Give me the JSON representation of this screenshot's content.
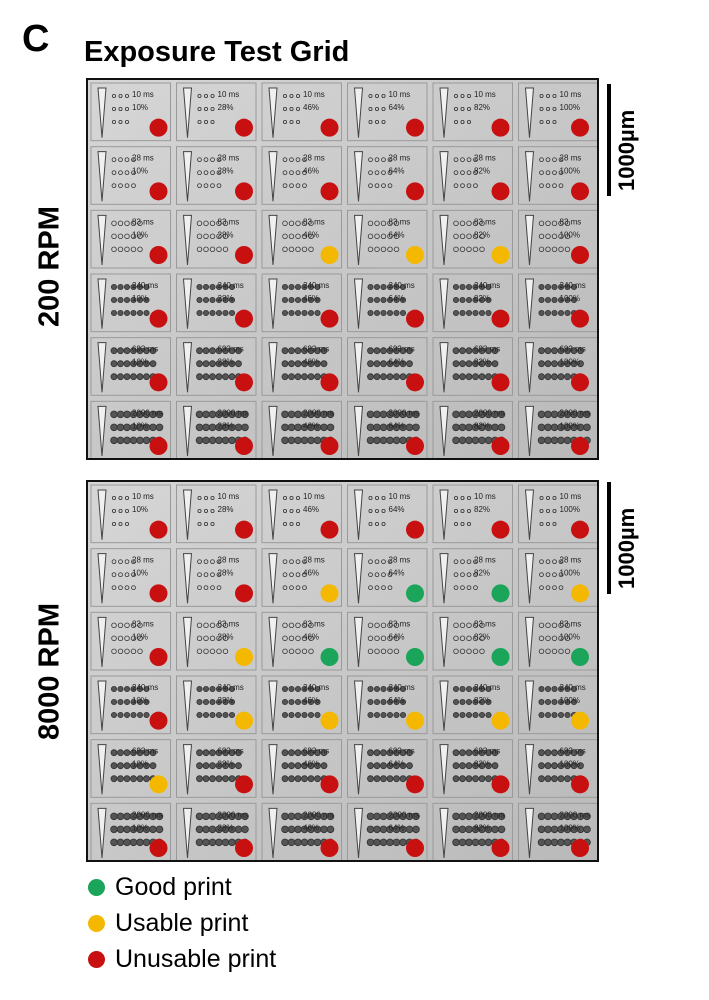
{
  "figure": {
    "panel_letter": "C",
    "title": "Exposure Test Grid",
    "scale_label": "1000µm"
  },
  "colors": {
    "good": "#1aa55a",
    "usable": "#f5b800",
    "unusable": "#c81010"
  },
  "legend": [
    {
      "key": "good",
      "label": "Good print"
    },
    {
      "key": "usable",
      "label": "Usable print"
    },
    {
      "key": "unusable",
      "label": "Unusable print"
    }
  ],
  "grid": {
    "exposure_times": [
      "10 ms",
      "28 ms",
      "83 ms",
      "240 ms",
      "693 ms",
      "2000 ms"
    ],
    "intensities": [
      "10%",
      "28%",
      "46%",
      "64%",
      "82%",
      "100%"
    ]
  },
  "panels": [
    {
      "label": "200 RPM",
      "ratings": [
        [
          "unusable",
          "unusable",
          "unusable",
          "unusable",
          "unusable",
          "unusable"
        ],
        [
          "unusable",
          "unusable",
          "unusable",
          "unusable",
          "unusable",
          "unusable"
        ],
        [
          "unusable",
          "unusable",
          "usable",
          "usable",
          "usable",
          "unusable"
        ],
        [
          "unusable",
          "unusable",
          "unusable",
          "unusable",
          "unusable",
          "unusable"
        ],
        [
          "unusable",
          "unusable",
          "unusable",
          "unusable",
          "unusable",
          "unusable"
        ],
        [
          "unusable",
          "unusable",
          "unusable",
          "unusable",
          "unusable",
          "unusable"
        ]
      ]
    },
    {
      "label": "8000 RPM",
      "ratings": [
        [
          "unusable",
          "unusable",
          "unusable",
          "unusable",
          "unusable",
          "unusable"
        ],
        [
          "unusable",
          "unusable",
          "usable",
          "good",
          "good",
          "usable"
        ],
        [
          "unusable",
          "usable",
          "good",
          "good",
          "good",
          "good"
        ],
        [
          "unusable",
          "usable",
          "usable",
          "usable",
          "usable",
          "usable"
        ],
        [
          "usable",
          "unusable",
          "unusable",
          "unusable",
          "unusable",
          "unusable"
        ],
        [
          "unusable",
          "unusable",
          "unusable",
          "unusable",
          "unusable",
          "unusable"
        ]
      ]
    }
  ]
}
